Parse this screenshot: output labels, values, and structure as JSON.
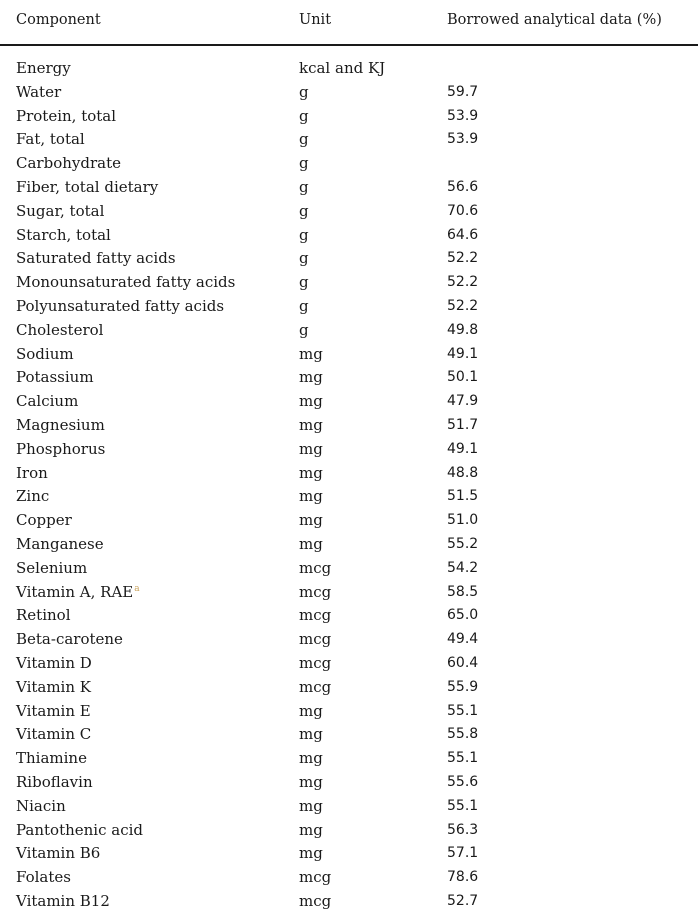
{
  "table": {
    "headers": {
      "component": "Component",
      "unit": "Unit",
      "data": "Borrowed analytical data (%)"
    },
    "rows": [
      {
        "component": "Energy",
        "unit": "kcal and KJ",
        "value": ""
      },
      {
        "component": "Water",
        "unit": "g",
        "value": "59.7"
      },
      {
        "component": "Protein, total",
        "unit": "g",
        "value": "53.9"
      },
      {
        "component": "Fat, total",
        "unit": "g",
        "value": "53.9"
      },
      {
        "component": "Carbohydrate",
        "unit": "g",
        "value": ""
      },
      {
        "component": "Fiber, total dietary",
        "unit": "g",
        "value": "56.6"
      },
      {
        "component": "Sugar, total",
        "unit": "g",
        "value": "70.6"
      },
      {
        "component": "Starch, total",
        "unit": "g",
        "value": "64.6"
      },
      {
        "component": "Saturated fatty acids",
        "unit": "g",
        "value": "52.2"
      },
      {
        "component": "Monounsaturated fatty acids",
        "unit": "g",
        "value": "52.2"
      },
      {
        "component": "Polyunsaturated fatty acids",
        "unit": "g",
        "value": "52.2"
      },
      {
        "component": "Cholesterol",
        "unit": "g",
        "value": "49.8"
      },
      {
        "component": "Sodium",
        "unit": "mg",
        "value": "49.1"
      },
      {
        "component": "Potassium",
        "unit": "mg",
        "value": "50.1"
      },
      {
        "component": "Calcium",
        "unit": "mg",
        "value": "47.9"
      },
      {
        "component": "Magnesium",
        "unit": "mg",
        "value": "51.7"
      },
      {
        "component": "Phosphorus",
        "unit": "mg",
        "value": "49.1"
      },
      {
        "component": "Iron",
        "unit": "mg",
        "value": "48.8"
      },
      {
        "component": "Zinc",
        "unit": "mg",
        "value": "51.5"
      },
      {
        "component": "Copper",
        "unit": "mg",
        "value": "51.0"
      },
      {
        "component": "Manganese",
        "unit": "mg",
        "value": "55.2"
      },
      {
        "component": "Selenium",
        "unit": "mcg",
        "value": "54.2"
      },
      {
        "component": "Vitamin A, RAE",
        "footnote": "a",
        "unit": "mcg",
        "value": "58.5"
      },
      {
        "component": "Retinol",
        "unit": "mcg",
        "value": "65.0"
      },
      {
        "component": "Beta-carotene",
        "unit": "mcg",
        "value": "49.4"
      },
      {
        "component": "Vitamin D",
        "unit": "mcg",
        "value": "60.4"
      },
      {
        "component": "Vitamin K",
        "unit": "mcg",
        "value": "55.9"
      },
      {
        "component": "Vitamin E",
        "unit": "mg",
        "value": "55.1"
      },
      {
        "component": "Vitamin C",
        "unit": "mg",
        "value": "55.8"
      },
      {
        "component": "Thiamine",
        "unit": "mg",
        "value": "55.1"
      },
      {
        "component": "Riboflavin",
        "unit": "mg",
        "value": "55.6"
      },
      {
        "component": "Niacin",
        "unit": "mg",
        "value": "55.1"
      },
      {
        "component": "Pantothenic acid",
        "unit": "mg",
        "value": "56.3"
      },
      {
        "component": "Vitamin B6",
        "unit": "mg",
        "value": "57.1"
      },
      {
        "component": "Folates",
        "unit": "mcg",
        "value": "78.6"
      },
      {
        "component": "Vitamin B12",
        "unit": "mcg",
        "value": "52.7"
      }
    ]
  }
}
